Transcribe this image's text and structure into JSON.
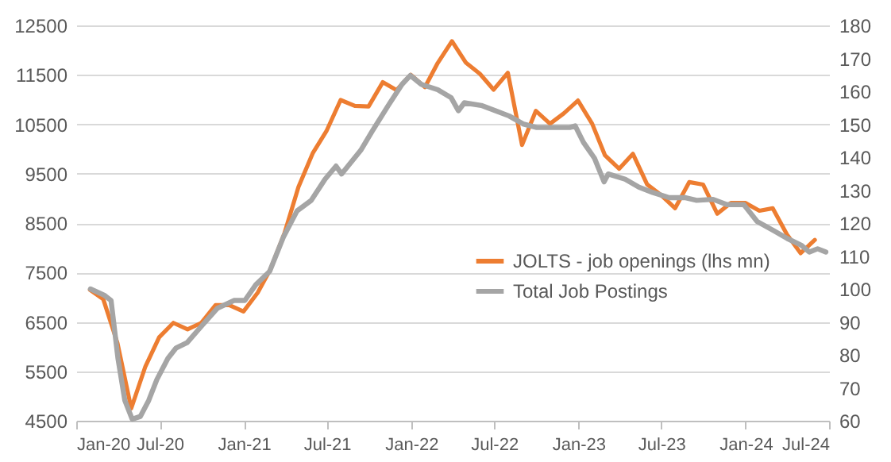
{
  "chart_data": {
    "type": "line",
    "xlim": [
      "2020-01-01",
      "2024-07-01"
    ],
    "xticks": [
      {
        "value": "2020-01-01",
        "label": "Jan-20"
      },
      {
        "value": "2020-07-01",
        "label": "Jul-20"
      },
      {
        "value": "2021-01-01",
        "label": "Jan-21"
      },
      {
        "value": "2021-07-01",
        "label": "Jul-21"
      },
      {
        "value": "2022-01-01",
        "label": "Jan-22"
      },
      {
        "value": "2022-07-01",
        "label": "Jul-22"
      },
      {
        "value": "2023-01-01",
        "label": "Jan-23"
      },
      {
        "value": "2023-07-01",
        "label": "Jul-23"
      },
      {
        "value": "2024-01-01",
        "label": "Jan-24"
      },
      {
        "value": "2024-07-01",
        "label": "Jul-24"
      }
    ],
    "ylim": [
      4500,
      12500
    ],
    "yticks": [
      4500,
      5500,
      6500,
      7500,
      8500,
      9500,
      10500,
      11500,
      12500
    ],
    "y2lim": [
      60,
      180
    ],
    "y2ticks": [
      60,
      70,
      80,
      90,
      100,
      110,
      120,
      130,
      140,
      150,
      160,
      170,
      180
    ],
    "grid": "y",
    "legend": "right",
    "series": [
      {
        "name": "JOLTS - job openings (lhs mn)",
        "color": "#ed7d31",
        "axis": "y",
        "x": [
          "2020-01-31",
          "2020-02-29",
          "2020-03-31",
          "2020-04-30",
          "2020-05-31",
          "2020-06-30",
          "2020-07-31",
          "2020-08-31",
          "2020-09-30",
          "2020-10-31",
          "2020-11-30",
          "2020-12-31",
          "2021-01-31",
          "2021-02-28",
          "2021-03-31",
          "2021-04-30",
          "2021-05-31",
          "2021-06-30",
          "2021-07-31",
          "2021-08-31",
          "2021-09-30",
          "2021-10-31",
          "2021-11-30",
          "2021-12-31",
          "2022-01-31",
          "2022-02-28",
          "2022-03-31",
          "2022-04-30",
          "2022-05-31",
          "2022-06-30",
          "2022-07-31",
          "2022-08-31",
          "2022-09-30",
          "2022-10-31",
          "2022-11-30",
          "2022-12-31",
          "2023-01-31",
          "2023-02-28",
          "2023-03-31",
          "2023-04-30",
          "2023-05-31",
          "2023-06-30",
          "2023-07-31",
          "2023-08-31",
          "2023-09-30",
          "2023-10-31",
          "2023-11-30",
          "2023-12-31",
          "2024-01-31",
          "2024-02-29",
          "2024-03-31",
          "2024-04-30",
          "2024-05-31"
        ],
        "values": [
          7150,
          6960,
          6070,
          4750,
          5600,
          6190,
          6480,
          6350,
          6480,
          6840,
          6840,
          6710,
          7090,
          7570,
          8310,
          9230,
          9910,
          10360,
          10990,
          10870,
          10860,
          11350,
          11190,
          11500,
          11250,
          11740,
          12180,
          11750,
          11520,
          11200,
          11540,
          10080,
          10770,
          10510,
          10720,
          10980,
          10510,
          9870,
          9600,
          9900,
          9280,
          9070,
          8800,
          9330,
          9280,
          8690,
          8910,
          8910,
          8750,
          8800,
          8270,
          7890,
          8160
        ]
      },
      {
        "name": "Total Job Postings",
        "color": "#a5a5a5",
        "axis": "y2",
        "x": [
          "2020-02-01",
          "2020-03-02",
          "2020-03-17",
          "2020-04-01",
          "2020-04-16",
          "2020-05-02",
          "2020-05-20",
          "2020-06-07",
          "2020-06-25",
          "2020-07-19",
          "2020-08-06",
          "2020-08-30",
          "2020-09-29",
          "2020-11-04",
          "2020-12-10",
          "2021-01-03",
          "2021-01-27",
          "2021-02-26",
          "2021-03-28",
          "2021-04-27",
          "2021-05-28",
          "2021-06-27",
          "2021-07-21",
          "2021-08-02",
          "2021-09-13",
          "2021-10-07",
          "2021-11-12",
          "2021-12-12",
          "2021-12-30",
          "2022-01-23",
          "2022-02-28",
          "2022-03-29",
          "2022-04-14",
          "2022-04-27",
          "2022-06-03",
          "2022-07-04",
          "2022-08-03",
          "2022-09-02",
          "2022-10-02",
          "2022-11-07",
          "2022-12-13",
          "2022-12-25",
          "2023-01-12",
          "2023-02-05",
          "2023-02-26",
          "2023-03-07",
          "2023-04-13",
          "2023-05-13",
          "2023-06-12",
          "2023-07-18",
          "2023-08-23",
          "2023-09-16",
          "2023-10-22",
          "2023-11-21",
          "2023-12-28",
          "2024-01-26",
          "2024-03-02",
          "2024-04-01",
          "2024-05-01",
          "2024-05-19",
          "2024-06-06",
          "2024-06-24"
        ],
        "values": [
          100,
          98.1,
          96.5,
          79,
          66.2,
          60.5,
          61.3,
          66.1,
          72.5,
          78.9,
          82.1,
          83.7,
          88.5,
          94.1,
          96.5,
          96.5,
          101.3,
          105.3,
          115.7,
          123.7,
          126.9,
          133.3,
          137.3,
          134.9,
          142.1,
          147.7,
          155.7,
          162.1,
          164.8,
          162.1,
          160.5,
          158.1,
          154.1,
          156.5,
          155.7,
          154.1,
          152.5,
          150.1,
          149,
          149,
          149,
          149.5,
          144.5,
          139.7,
          132.5,
          134.9,
          133.3,
          130.9,
          129.3,
          127.7,
          127.7,
          126.9,
          127.2,
          125.6,
          125.6,
          120.5,
          117.7,
          115.3,
          113.3,
          111.2,
          112.2,
          111.2
        ]
      }
    ]
  }
}
